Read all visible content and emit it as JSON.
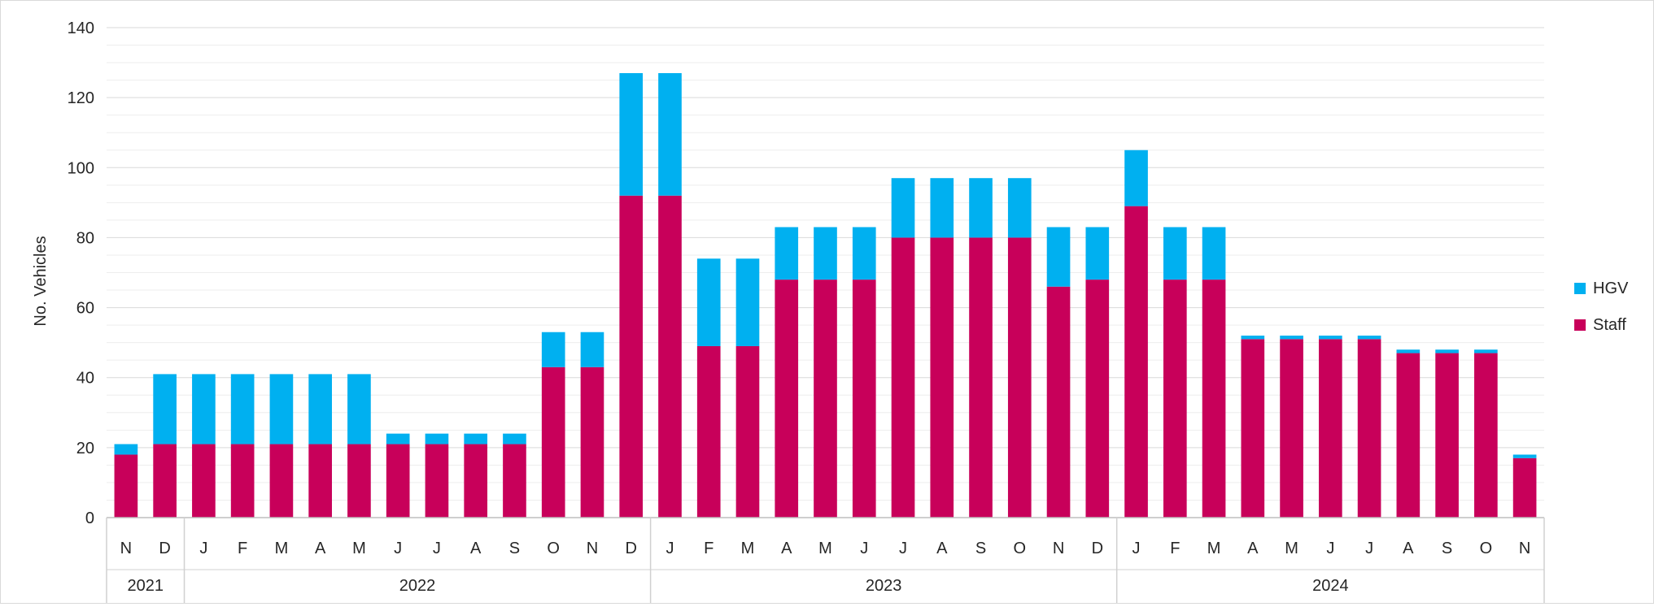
{
  "chart_data": {
    "type": "bar",
    "stacked": true,
    "ylabel": "No. Vehicles",
    "xlabel": "",
    "ylim": [
      0,
      140
    ],
    "yticks": [
      0,
      20,
      40,
      60,
      80,
      100,
      120,
      140
    ],
    "grid": true,
    "legend_position": "right",
    "categories": [
      "N",
      "D",
      "J",
      "F",
      "M",
      "A",
      "M",
      "J",
      "J",
      "A",
      "S",
      "O",
      "N",
      "D",
      "J",
      "F",
      "M",
      "A",
      "M",
      "J",
      "J",
      "A",
      "S",
      "O",
      "N",
      "D",
      "J",
      "F",
      "M",
      "A",
      "M",
      "J",
      "J",
      "A",
      "S",
      "O",
      "N"
    ],
    "year_groups": [
      {
        "label": "2021",
        "count": 2
      },
      {
        "label": "2022",
        "count": 12
      },
      {
        "label": "2023",
        "count": 12
      },
      {
        "label": "2024",
        "count": 11
      }
    ],
    "series": [
      {
        "name": "Staff",
        "color": "#c8005a",
        "values": [
          18,
          21,
          21,
          21,
          21,
          21,
          21,
          21,
          21,
          21,
          21,
          43,
          43,
          92,
          92,
          49,
          49,
          68,
          68,
          68,
          80,
          80,
          80,
          80,
          66,
          68,
          89,
          68,
          68,
          51,
          51,
          51,
          51,
          47,
          47,
          47,
          17
        ]
      },
      {
        "name": "HGV",
        "color": "#00b0f0",
        "values": [
          3,
          20,
          20,
          20,
          20,
          20,
          20,
          3,
          3,
          3,
          3,
          10,
          10,
          35,
          35,
          25,
          25,
          15,
          15,
          15,
          17,
          17,
          17,
          17,
          17,
          15,
          16,
          15,
          15,
          1,
          1,
          1,
          1,
          1,
          1,
          1,
          1
        ]
      }
    ],
    "legend": [
      {
        "name": "HGV",
        "color": "#00b0f0"
      },
      {
        "name": "Staff",
        "color": "#c8005a"
      }
    ]
  }
}
